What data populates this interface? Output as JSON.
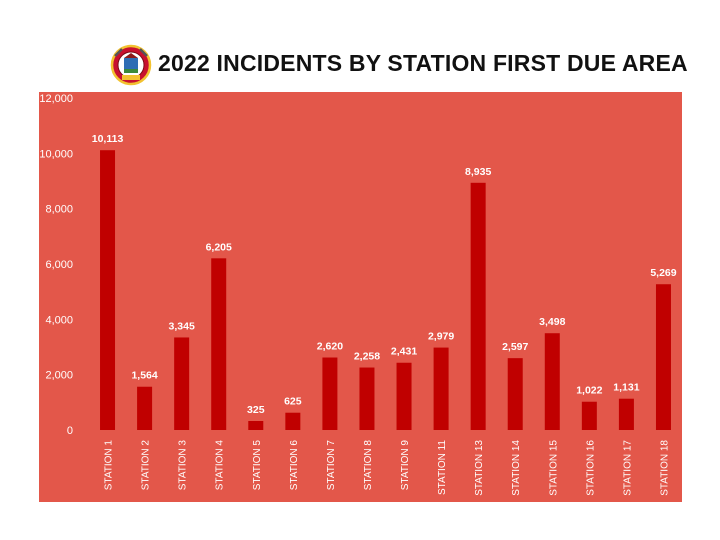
{
  "title": "2022 INCIDENTS BY STATION FIRST DUE AREA",
  "logo": {
    "icon": "fire-department-badge-icon"
  },
  "colors": {
    "panel_background": "#E3574A",
    "bar": "#C00000",
    "axis_text": "#FFFFFF",
    "title_text": "#111111"
  },
  "chart_data": {
    "type": "bar",
    "title": "2022 INCIDENTS BY STATION FIRST DUE AREA",
    "xlabel": "",
    "ylabel": "",
    "ylim": [
      0,
      12000
    ],
    "yticks": [
      0,
      2000,
      4000,
      6000,
      8000,
      10000,
      12000
    ],
    "ytick_labels": [
      "0",
      "2,000",
      "4,000",
      "6,000",
      "8,000",
      "10,000",
      "12,000"
    ],
    "grid": false,
    "legend": "none",
    "categories": [
      "STATION 1",
      "STATION 2",
      "STATION 3",
      "STATION 4",
      "STATION 5",
      "STATION 6",
      "STATION 7",
      "STATION 8",
      "STATION 9",
      "STATION 11",
      "STATION 13",
      "STATION 14",
      "STATION 15",
      "STATION 16",
      "STATION 17",
      "STATION 18"
    ],
    "values": [
      10113,
      1564,
      3345,
      6205,
      325,
      625,
      2620,
      2258,
      2431,
      2979,
      8935,
      2597,
      3498,
      1022,
      1131,
      5269
    ],
    "data_labels": [
      "10,113",
      "1,564",
      "3,345",
      "6,205",
      "325",
      "625",
      "2,620",
      "2,258",
      "2,431",
      "2,979",
      "8,935",
      "2,597",
      "3,498",
      "1,022",
      "1,131",
      "5,269"
    ]
  }
}
